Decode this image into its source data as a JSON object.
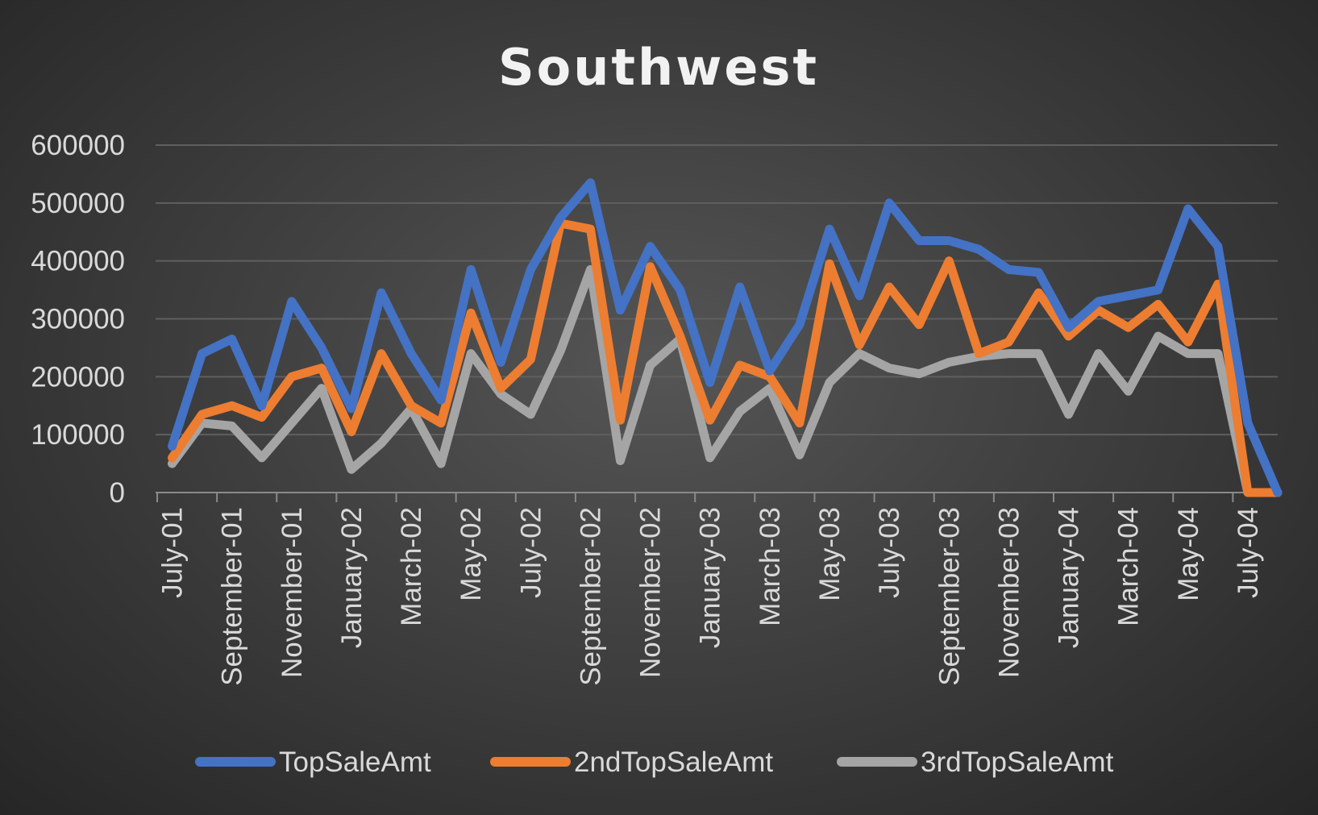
{
  "chart_data": {
    "type": "line",
    "title": "Southwest",
    "xlabel": "",
    "ylabel": "",
    "ylim": [
      0,
      600000
    ],
    "yticks": [
      "0",
      "100000",
      "200000",
      "300000",
      "400000",
      "500000",
      "600000"
    ],
    "grid": true,
    "legend_position": "bottom",
    "x": [
      "July-01",
      "August-01",
      "September-01",
      "October-01",
      "November-01",
      "December-01",
      "January-02",
      "February-02",
      "March-02",
      "April-02",
      "May-02",
      "June-02",
      "July-02",
      "August-02",
      "September-02",
      "October-02",
      "November-02",
      "December-02",
      "January-03",
      "February-03",
      "March-03",
      "April-03",
      "May-03",
      "June-03",
      "July-03",
      "August-03",
      "September-03",
      "October-03",
      "November-03",
      "December-03",
      "January-04",
      "February-04",
      "March-04",
      "April-04",
      "May-04",
      "June-04",
      "July-04",
      "August-04"
    ],
    "x_tick_labels": [
      "July-01",
      "September-01",
      "November-01",
      "January-02",
      "March-02",
      "May-02",
      "July-02",
      "September-02",
      "November-02",
      "January-03",
      "March-03",
      "May-03",
      "July-03",
      "September-03",
      "November-03",
      "January-04",
      "March-04",
      "May-04",
      "July-04"
    ],
    "series": [
      {
        "name": "TopSaleAmt",
        "color": "#4472C4",
        "values": [
          80000,
          240000,
          265000,
          150000,
          330000,
          250000,
          145000,
          345000,
          240000,
          160000,
          385000,
          225000,
          385000,
          475000,
          535000,
          315000,
          425000,
          350000,
          190000,
          355000,
          210000,
          290000,
          455000,
          340000,
          500000,
          435000,
          435000,
          420000,
          385000,
          380000,
          285000,
          330000,
          340000,
          350000,
          490000,
          425000,
          120000,
          0
        ]
      },
      {
        "name": "2ndTopSaleAmt",
        "color": "#ED7D31",
        "values": [
          60000,
          135000,
          150000,
          130000,
          200000,
          215000,
          105000,
          240000,
          150000,
          120000,
          310000,
          180000,
          230000,
          465000,
          455000,
          125000,
          390000,
          270000,
          125000,
          220000,
          200000,
          120000,
          395000,
          255000,
          355000,
          290000,
          400000,
          240000,
          260000,
          345000,
          270000,
          315000,
          285000,
          325000,
          260000,
          360000,
          0,
          0
        ]
      },
      {
        "name": "3rdTopSaleAmt",
        "color": "#A5A5A5",
        "values": [
          50000,
          120000,
          115000,
          60000,
          120000,
          180000,
          40000,
          85000,
          145000,
          50000,
          240000,
          170000,
          135000,
          245000,
          385000,
          55000,
          220000,
          265000,
          60000,
          140000,
          180000,
          65000,
          190000,
          240000,
          215000,
          205000,
          225000,
          235000,
          240000,
          240000,
          135000,
          240000,
          175000,
          270000,
          240000,
          240000,
          0,
          0
        ]
      }
    ]
  }
}
